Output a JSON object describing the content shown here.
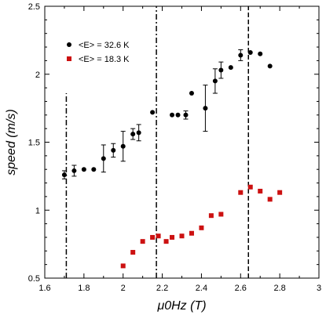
{
  "chart_data": {
    "type": "scatter",
    "xlabel": "μ0Hz (T)",
    "ylabel": "speed (m/s)",
    "xlim": [
      1.6,
      3.0
    ],
    "ylim": [
      0.5,
      2.5
    ],
    "x_ticks": [
      "1.6",
      "1.8",
      "2",
      "2.2",
      "2.4",
      "2.6",
      "2.8",
      "3"
    ],
    "y_ticks": [
      "0.5",
      "1",
      "1.5",
      "2",
      "2.5"
    ],
    "grid": false,
    "legend_position": "top-left",
    "series": [
      {
        "name": "<E> = 32.6 K",
        "color": "#000000",
        "marker": "circle",
        "points": [
          {
            "x": 1.7,
            "y": 1.26,
            "err": 0.03
          },
          {
            "x": 1.75,
            "y": 1.29,
            "err": 0.04
          },
          {
            "x": 1.8,
            "y": 1.3,
            "err": 0.0
          },
          {
            "x": 1.85,
            "y": 1.3,
            "err": 0.0
          },
          {
            "x": 1.9,
            "y": 1.38,
            "err": 0.1
          },
          {
            "x": 1.95,
            "y": 1.44,
            "err": 0.05
          },
          {
            "x": 2.0,
            "y": 1.47,
            "err": 0.11
          },
          {
            "x": 2.05,
            "y": 1.56,
            "err": 0.04
          },
          {
            "x": 2.08,
            "y": 1.57,
            "err": 0.06
          },
          {
            "x": 2.15,
            "y": 1.72,
            "err": 0.0
          },
          {
            "x": 2.25,
            "y": 1.7,
            "err": 0.0
          },
          {
            "x": 2.28,
            "y": 1.7,
            "err": 0.0
          },
          {
            "x": 2.32,
            "y": 1.7,
            "err": 0.03
          },
          {
            "x": 2.35,
            "y": 1.86,
            "err": 0.0
          },
          {
            "x": 2.42,
            "y": 1.75,
            "err": 0.17
          },
          {
            "x": 2.47,
            "y": 1.95,
            "err": 0.09
          },
          {
            "x": 2.5,
            "y": 2.03,
            "err": 0.06
          },
          {
            "x": 2.55,
            "y": 2.05,
            "err": 0.0
          },
          {
            "x": 2.6,
            "y": 2.14,
            "err": 0.04
          },
          {
            "x": 2.65,
            "y": 2.16,
            "err": 0.0
          },
          {
            "x": 2.7,
            "y": 2.15,
            "err": 0.0
          },
          {
            "x": 2.75,
            "y": 2.06,
            "err": 0.0
          }
        ]
      },
      {
        "name": "<E> = 18.3 K",
        "color": "#cc1111",
        "marker": "square",
        "points": [
          {
            "x": 2.0,
            "y": 0.59
          },
          {
            "x": 2.05,
            "y": 0.69
          },
          {
            "x": 2.1,
            "y": 0.77
          },
          {
            "x": 2.15,
            "y": 0.8
          },
          {
            "x": 2.18,
            "y": 0.81
          },
          {
            "x": 2.22,
            "y": 0.77
          },
          {
            "x": 2.25,
            "y": 0.8
          },
          {
            "x": 2.3,
            "y": 0.81
          },
          {
            "x": 2.35,
            "y": 0.83
          },
          {
            "x": 2.4,
            "y": 0.87
          },
          {
            "x": 2.45,
            "y": 0.96
          },
          {
            "x": 2.5,
            "y": 0.97
          },
          {
            "x": 2.6,
            "y": 1.13
          },
          {
            "x": 2.65,
            "y": 1.17
          },
          {
            "x": 2.7,
            "y": 1.14
          },
          {
            "x": 2.75,
            "y": 1.08
          },
          {
            "x": 2.8,
            "y": 1.13
          }
        ]
      }
    ],
    "vertical_lines": [
      {
        "x": 1.71,
        "y_from": 0.5,
        "y_to": 1.86,
        "style": "dash-dot"
      },
      {
        "x": 2.17,
        "y_from": 0.5,
        "y_to": 2.5,
        "style": "dash-dot"
      },
      {
        "x": 2.64,
        "y_from": 0.5,
        "y_to": 2.5,
        "style": "dashed"
      }
    ]
  }
}
